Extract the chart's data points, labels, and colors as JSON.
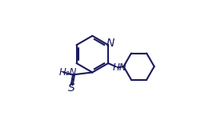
{
  "bg_color": "#ffffff",
  "line_color": "#1a1a5e",
  "line_width": 1.5,
  "font_size_label": 8.5,
  "fig_width": 2.66,
  "fig_height": 1.5,
  "dpi": 100,
  "N_label": "N",
  "NH_label": "HN",
  "H2N_label": "H₂N",
  "S_label": "S"
}
